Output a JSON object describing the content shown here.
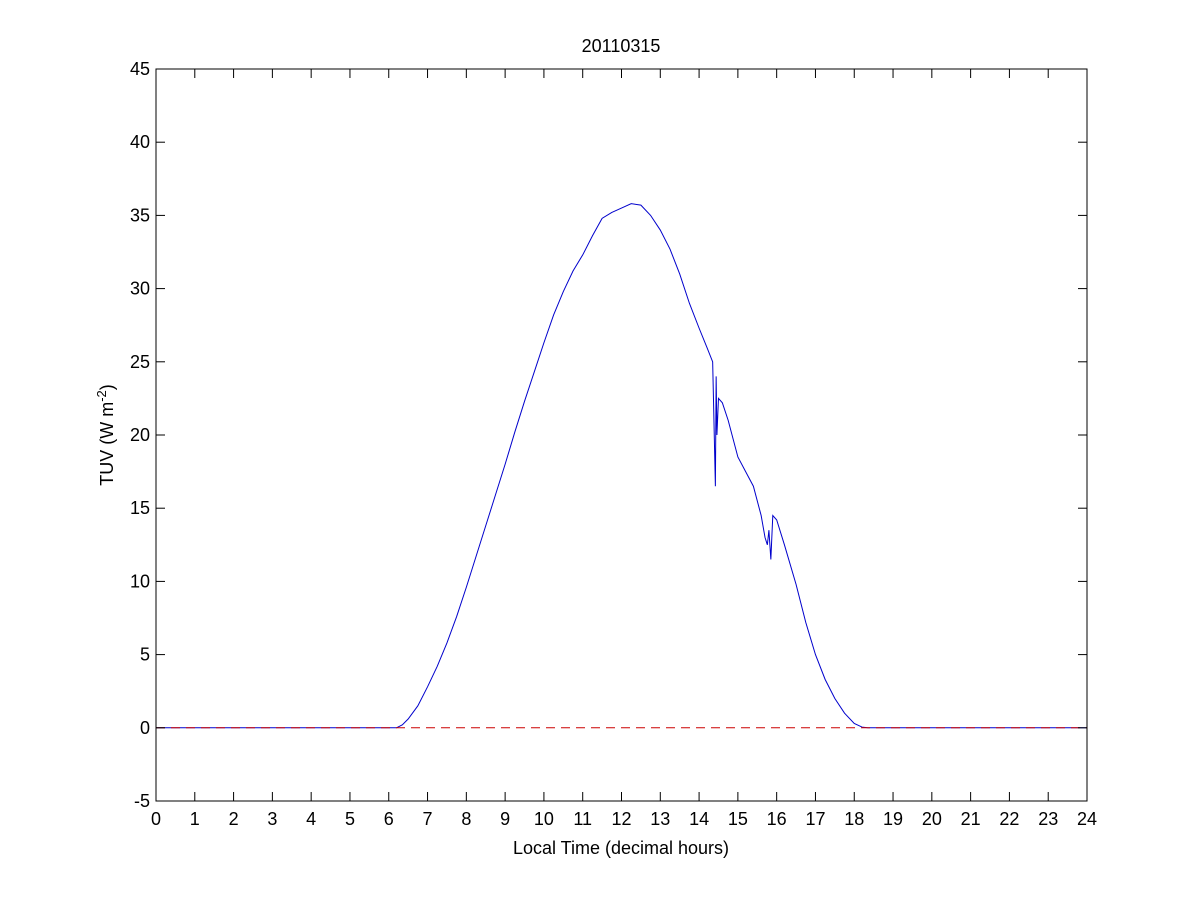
{
  "chart_data": {
    "type": "line",
    "title": "20110315",
    "xlabel": "Local Time (decimal hours)",
    "ylabel": {
      "main": "TUV (W m",
      "superscript": "-2",
      "close": ")"
    },
    "xlim": [
      0,
      24
    ],
    "ylim": [
      -5,
      45
    ],
    "xticks": [
      0,
      1,
      2,
      3,
      4,
      5,
      6,
      7,
      8,
      9,
      10,
      11,
      12,
      13,
      14,
      15,
      16,
      17,
      18,
      19,
      20,
      21,
      22,
      23,
      24
    ],
    "yticks": [
      -5,
      0,
      5,
      10,
      15,
      20,
      25,
      30,
      35,
      40,
      45
    ],
    "grid": false,
    "series": [
      {
        "color": "#0000cc",
        "style": "solid",
        "x": [
          0,
          6.0,
          6.2,
          6.35,
          6.5,
          6.75,
          7.0,
          7.25,
          7.5,
          7.75,
          8.0,
          8.25,
          8.5,
          8.75,
          9.0,
          9.25,
          9.5,
          9.75,
          10.0,
          10.25,
          10.5,
          10.75,
          11.0,
          11.25,
          11.5,
          11.75,
          12.0,
          12.25,
          12.5,
          12.75,
          13.0,
          13.25,
          13.5,
          13.75,
          14.0,
          14.2,
          14.35,
          14.42,
          14.44,
          14.46,
          14.5,
          14.6,
          14.75,
          14.9,
          15.0,
          15.2,
          15.4,
          15.6,
          15.7,
          15.76,
          15.8,
          15.85,
          15.9,
          16.0,
          16.2,
          16.5,
          16.75,
          17.0,
          17.25,
          17.5,
          17.75,
          18.0,
          18.2,
          18.35,
          18.5,
          24
        ],
        "y": [
          0,
          0,
          0,
          0.2,
          0.6,
          1.5,
          2.8,
          4.2,
          5.8,
          7.6,
          9.6,
          11.7,
          13.8,
          15.9,
          18.0,
          20.2,
          22.3,
          24.3,
          26.3,
          28.2,
          29.8,
          31.2,
          32.3,
          33.6,
          34.8,
          35.2,
          35.5,
          35.8,
          35.7,
          35.0,
          34.0,
          32.7,
          31.0,
          29.0,
          27.3,
          26.0,
          25.0,
          16.5,
          24.0,
          20.0,
          22.5,
          22.2,
          21.0,
          19.5,
          18.5,
          17.5,
          16.5,
          14.5,
          13.0,
          12.5,
          13.5,
          11.5,
          14.5,
          14.2,
          12.5,
          9.8,
          7.2,
          5.0,
          3.3,
          2.0,
          1.0,
          0.3,
          0.05,
          0,
          0,
          0
        ]
      },
      {
        "color": "#cc0000",
        "style": "dashed",
        "x": [
          0,
          24
        ],
        "y": [
          0,
          0
        ]
      }
    ]
  }
}
